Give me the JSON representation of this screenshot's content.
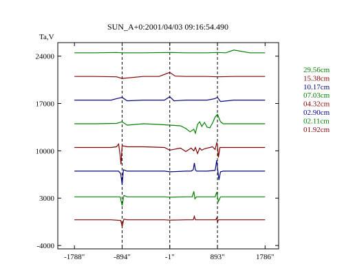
{
  "chart_data": {
    "type": "line",
    "title": "SUN_A+0:2001/04/03 09:16:54.490",
    "ylabel": "Ta,V",
    "xlim": [
      -2100,
      2040
    ],
    "ylim": [
      -4500,
      26000
    ],
    "x_ticks": [
      {
        "value": -1788,
        "label": "-1788\""
      },
      {
        "value": -894,
        "label": "-894\""
      },
      {
        "value": -1,
        "label": "-1\""
      },
      {
        "value": 893,
        "label": "893\""
      },
      {
        "value": 1786,
        "label": "1786\""
      }
    ],
    "y_ticks": [
      {
        "value": 24000,
        "label": "24000"
      },
      {
        "value": 17000,
        "label": "17000"
      },
      {
        "value": 10000,
        "label": "10000"
      },
      {
        "value": 3000,
        "label": "3000"
      },
      {
        "value": -4000,
        "label": "-4000"
      }
    ],
    "vlines": [
      -894,
      -1,
      893
    ],
    "series": [
      {
        "name": "29.56cm",
        "color": "#008000",
        "x": [
          -1788,
          -1400,
          -1000,
          -894,
          -500,
          -1,
          300,
          700,
          893,
          1050,
          1200,
          1500,
          1786
        ],
        "y": [
          24500,
          24500,
          24550,
          24500,
          24500,
          24550,
          24500,
          24500,
          24550,
          24500,
          24900,
          24500,
          24500
        ]
      },
      {
        "name": "15.38cm",
        "color": "#800000",
        "x": [
          -1788,
          -1400,
          -1000,
          -894,
          -500,
          -200,
          -100,
          -1,
          100,
          300,
          700,
          893,
          1200,
          1500,
          1786
        ],
        "y": [
          21000,
          21000,
          20950,
          20700,
          21000,
          21000,
          21300,
          21600,
          21050,
          21000,
          21000,
          20950,
          21000,
          21000,
          21000
        ]
      },
      {
        "name": "10.17cm",
        "color": "#000080",
        "x": [
          -1788,
          -1500,
          -1100,
          -1000,
          -894,
          -800,
          -500,
          -100,
          -1,
          80,
          300,
          700,
          840,
          893,
          950,
          1200,
          1786
        ],
        "y": [
          17500,
          17500,
          17500,
          17700,
          17900,
          17400,
          17500,
          17500,
          18000,
          17400,
          17500,
          17500,
          17700,
          17900,
          17300,
          17500,
          17500
        ]
      },
      {
        "name": "07.03cm",
        "color": "#008000",
        "x": [
          -1788,
          -1400,
          -1000,
          -894,
          -800,
          -500,
          -200,
          -1,
          200,
          300,
          380,
          450,
          480,
          520,
          560,
          600,
          650,
          700,
          750,
          800,
          850,
          893,
          950,
          1000,
          1200,
          1500,
          1786
        ],
        "y": [
          14000,
          14000,
          14050,
          14300,
          13800,
          14000,
          13900,
          13800,
          13700,
          13300,
          12800,
          13200,
          12600,
          13900,
          14300,
          13600,
          14200,
          13500,
          13400,
          14100,
          15000,
          15400,
          14300,
          14000,
          14000,
          14000,
          14000
        ]
      },
      {
        "name": "04.32cm",
        "color": "#800000",
        "x": [
          -1788,
          -1500,
          -1100,
          -1000,
          -960,
          -930,
          -915,
          -894,
          -870,
          -850,
          -800,
          -500,
          -100,
          -1,
          200,
          300,
          400,
          450,
          480,
          520,
          560,
          600,
          650,
          700,
          750,
          800,
          850,
          880,
          893,
          910,
          940,
          1000,
          1200,
          1786
        ],
        "y": [
          10500,
          10500,
          10500,
          10600,
          11000,
          9300,
          8000,
          10800,
          10700,
          10700,
          10600,
          10600,
          10500,
          10100,
          10400,
          9900,
          10400,
          10000,
          10500,
          9600,
          10400,
          10100,
          10300,
          10400,
          10500,
          10600,
          10200,
          11200,
          10900,
          9000,
          10500,
          10500,
          10500,
          10500
        ]
      },
      {
        "name": "02.90cm",
        "color": "#000080",
        "x": [
          -1788,
          -1500,
          -1100,
          -960,
          -920,
          -894,
          -870,
          -800,
          -500,
          -100,
          -1,
          300,
          400,
          440,
          460,
          480,
          500,
          700,
          850,
          880,
          893,
          920,
          950,
          1000,
          1200,
          1786
        ],
        "y": [
          7000,
          7000,
          7000,
          7000,
          6600,
          5000,
          7200,
          7000,
          7000,
          7000,
          6900,
          7000,
          7000,
          7200,
          8200,
          7200,
          7000,
          7000,
          7100,
          8600,
          7500,
          5700,
          6900,
          7000,
          7000,
          7000
        ]
      },
      {
        "name": "02.11cm",
        "color": "#008000",
        "x": [
          -1788,
          -1500,
          -1100,
          -930,
          -894,
          -860,
          -800,
          -500,
          -100,
          -1,
          300,
          420,
          450,
          470,
          500,
          700,
          850,
          880,
          893,
          910,
          950,
          1200,
          1786
        ],
        "y": [
          3200,
          3200,
          3200,
          3200,
          1900,
          3400,
          3200,
          3200,
          3200,
          3150,
          3200,
          3200,
          4000,
          2900,
          3200,
          3200,
          3200,
          3900,
          3200,
          2500,
          3200,
          3200,
          3200
        ]
      },
      {
        "name": "01.92cm",
        "color": "#800000",
        "x": [
          -1788,
          -1500,
          -1100,
          -920,
          -894,
          -860,
          -800,
          -500,
          -100,
          -1,
          300,
          440,
          460,
          480,
          700,
          860,
          880,
          893,
          910,
          1200,
          1786
        ],
        "y": [
          -200,
          -200,
          -200,
          -300,
          -1200,
          -100,
          -200,
          -200,
          -200,
          -250,
          -200,
          -200,
          300,
          -200,
          -200,
          -200,
          100,
          -600,
          -200,
          -200,
          -200
        ]
      }
    ]
  }
}
